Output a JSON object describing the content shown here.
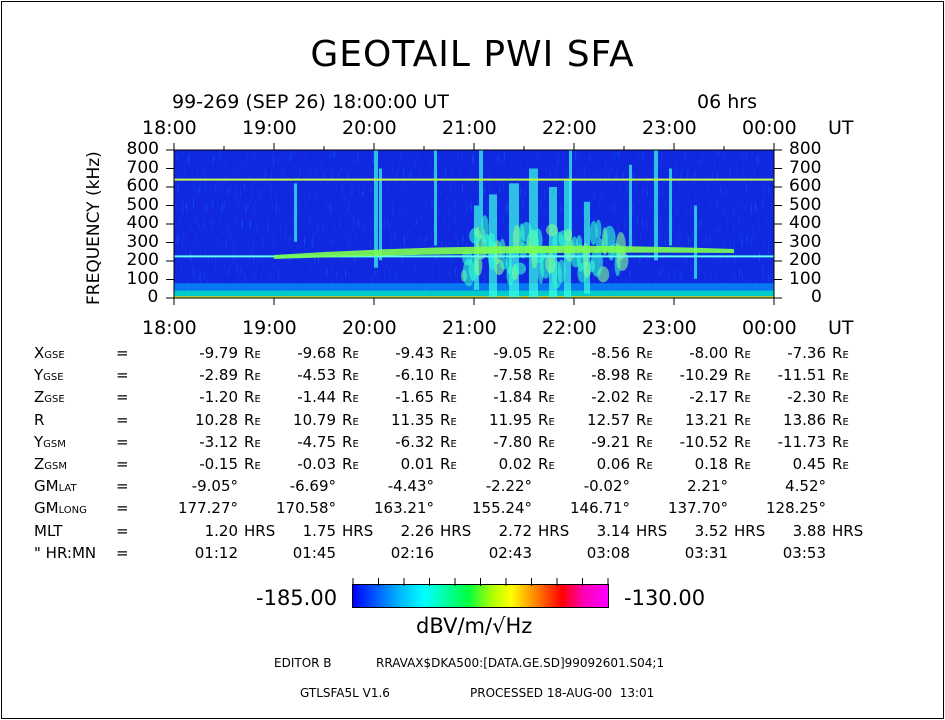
{
  "title": "GEOTAIL PWI SFA",
  "header": {
    "date_line": "99-269 (SEP 26) 18:00:00 UT",
    "duration": "06 hrs"
  },
  "chart_data": {
    "type": "heatmap",
    "title": "GEOTAIL PWI SFA",
    "x_tick_labels": [
      "18:00",
      "19:00",
      "20:00",
      "21:00",
      "22:00",
      "23:00",
      "00:00"
    ],
    "x_unit": "UT",
    "ylabel": "FREQUENCY (kHz)",
    "y_ticks": [
      0,
      100,
      200,
      300,
      400,
      500,
      600,
      700,
      800
    ],
    "ylim": [
      0,
      800
    ],
    "colorbar": {
      "min_label": "-185.00",
      "max_label": "-130.00",
      "unit": "dBV/m/√Hz"
    },
    "features": [
      {
        "name": "line",
        "freq_khz": 640
      },
      {
        "name": "line",
        "freq_khz": 225
      },
      {
        "name": "band",
        "from_hour": 1.0,
        "to_hour": 5.6,
        "freq_khz": [
          265,
          290
        ]
      }
    ]
  },
  "ephemeris": {
    "rows": [
      {
        "label": "X",
        "sub": "GSE",
        "values": [
          "-9.79",
          "-9.68",
          "-9.43",
          "-9.05",
          "-8.56",
          "-8.00",
          "-7.36"
        ],
        "unit": "R",
        "unit_sub": "E"
      },
      {
        "label": "Y",
        "sub": "GSE",
        "values": [
          "-2.89",
          "-4.53",
          "-6.10",
          "-7.58",
          "-8.98",
          "-10.29",
          "-11.51"
        ],
        "unit": "R",
        "unit_sub": "E"
      },
      {
        "label": "Z",
        "sub": "GSE",
        "values": [
          "-1.20",
          "-1.44",
          "-1.65",
          "-1.84",
          "-2.02",
          "-2.17",
          "-2.30"
        ],
        "unit": "R",
        "unit_sub": "E"
      },
      {
        "label": "R",
        "sub": "",
        "values": [
          "10.28",
          "10.79",
          "11.35",
          "11.95",
          "12.57",
          "13.21",
          "13.86"
        ],
        "unit": "R",
        "unit_sub": "E"
      },
      {
        "label": "Y",
        "sub": "GSM",
        "values": [
          "-3.12",
          "-4.75",
          "-6.32",
          "-7.80",
          "-9.21",
          "-10.52",
          "-11.73"
        ],
        "unit": "R",
        "unit_sub": "E"
      },
      {
        "label": "Z",
        "sub": "GSM",
        "values": [
          "-0.15",
          "-0.03",
          "0.01",
          "0.02",
          "0.06",
          "0.18",
          "0.45"
        ],
        "unit": "R",
        "unit_sub": "E"
      },
      {
        "label": "GM",
        "sub": "LAT",
        "values": [
          "-9.05°",
          "-6.69°",
          "-4.43°",
          "-2.22°",
          "-0.02°",
          "2.21°",
          "4.52°"
        ],
        "unit": "",
        "unit_sub": ""
      },
      {
        "label": "GM",
        "sub": "LONG",
        "values": [
          "177.27°",
          "170.58°",
          "163.21°",
          "155.24°",
          "146.71°",
          "137.70°",
          "128.25°"
        ],
        "unit": "",
        "unit_sub": ""
      },
      {
        "label": "MLT",
        "sub": "",
        "values": [
          "1.20",
          "1.75",
          "2.26",
          "2.72",
          "3.14",
          "3.52",
          "3.88"
        ],
        "unit": "HRS",
        "unit_sub": ""
      },
      {
        "label": "\" HR:MN",
        "sub": "",
        "values": [
          "01:12",
          "01:45",
          "02:16",
          "02:43",
          "03:08",
          "03:31",
          "03:53"
        ],
        "unit": "",
        "unit_sub": ""
      }
    ]
  },
  "footer": {
    "editor": "EDITOR B",
    "path": "RRAVAX$DKA500:[DATA.GE.SD]99092601.S04;1",
    "version": "GTLSFA5L V1.6",
    "processed": "PROCESSED 18-AUG-00  13:01"
  }
}
